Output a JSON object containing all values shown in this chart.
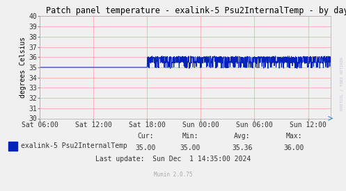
{
  "title": "Patch panel temperature - exalink-5 Psu2InternalTemp - by day",
  "ylabel": "degrees Celsius",
  "ylim": [
    30,
    40
  ],
  "yticks": [
    30,
    31,
    32,
    33,
    34,
    35,
    36,
    37,
    38,
    39,
    40
  ],
  "background_color": "#f0f0f0",
  "plot_bg_color": "#f0f0f0",
  "grid_color": "#ff8080",
  "line_color": "#0022bb",
  "line_width": 0.7,
  "xtick_labels": [
    "Sat 06:00",
    "Sat 12:00",
    "Sat 18:00",
    "Sun 00:00",
    "Sun 06:00",
    "Sun 12:00"
  ],
  "legend_label": "exalink-5 Psu2InternalTemp",
  "legend_color": "#0022bb",
  "cur": "35.00",
  "min_val": "35.00",
  "avg": "35.36",
  "max_val": "36.00",
  "last_update": "Last update:  Sun Dec  1 14:35:00 2024",
  "munin_version": "Munin 2.0.75",
  "watermark": "RRDTOOL / TOBI OETIKER",
  "title_fontsize": 8.5,
  "axis_fontsize": 7,
  "legend_fontsize": 7,
  "stats_fontsize": 7
}
